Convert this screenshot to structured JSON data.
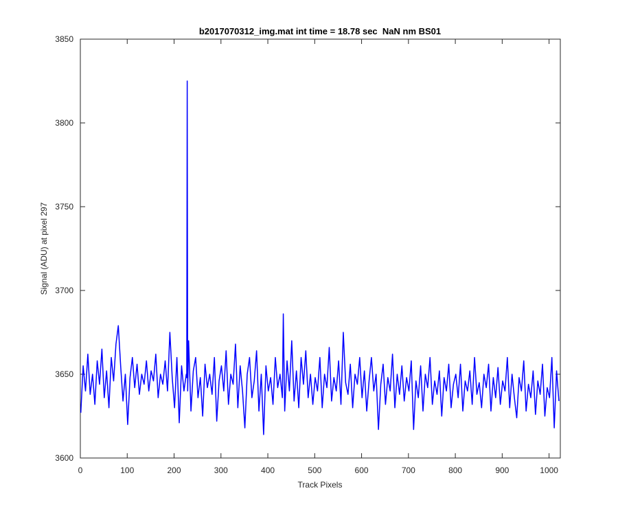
{
  "chart_data": {
    "type": "line",
    "title": "b2017070312_img.mat int time = 18.78 sec  NaN nm BS01",
    "x_label": "Track Pixels",
    "y_label": "Signal (ADU) at pixel 297",
    "xlim": [
      0,
      1024
    ],
    "ylim": [
      3600,
      3850
    ],
    "xticks": [
      0,
      100,
      200,
      300,
      400,
      500,
      600,
      700,
      800,
      900,
      1000
    ],
    "yticks": [
      3600,
      3650,
      3700,
      3750,
      3800,
      3850
    ],
    "grid": false,
    "series": [
      {
        "color": "#0000ff",
        "x": [
          1,
          6,
          11,
          16,
          21,
          26,
          31,
          36,
          41,
          46,
          51,
          56,
          61,
          66,
          71,
          76,
          81,
          86,
          91,
          96,
          101,
          106,
          111,
          116,
          121,
          126,
          131,
          136,
          141,
          146,
          151,
          156,
          161,
          166,
          171,
          176,
          181,
          186,
          191,
          196,
          201,
          206,
          211,
          216,
          221,
          226,
          227,
          228,
          229,
          231,
          236,
          241,
          246,
          251,
          256,
          261,
          266,
          271,
          276,
          281,
          286,
          291,
          296,
          301,
          306,
          311,
          316,
          321,
          326,
          331,
          336,
          341,
          346,
          351,
          356,
          361,
          366,
          371,
          376,
          381,
          386,
          391,
          396,
          401,
          406,
          411,
          416,
          421,
          426,
          431,
          433,
          436,
          441,
          446,
          451,
          456,
          461,
          466,
          471,
          476,
          481,
          486,
          491,
          496,
          501,
          506,
          511,
          516,
          521,
          526,
          531,
          536,
          541,
          546,
          551,
          556,
          561,
          566,
          571,
          576,
          581,
          586,
          591,
          596,
          601,
          606,
          611,
          616,
          621,
          626,
          631,
          636,
          641,
          646,
          651,
          656,
          661,
          666,
          671,
          676,
          681,
          686,
          691,
          696,
          701,
          706,
          711,
          716,
          721,
          726,
          731,
          736,
          741,
          746,
          751,
          756,
          761,
          766,
          771,
          776,
          781,
          786,
          791,
          796,
          801,
          806,
          811,
          816,
          821,
          826,
          831,
          836,
          841,
          846,
          851,
          856,
          861,
          866,
          871,
          876,
          881,
          886,
          891,
          896,
          901,
          906,
          911,
          916,
          921,
          926,
          931,
          936,
          941,
          946,
          951,
          956,
          961,
          966,
          971,
          976,
          981,
          986,
          991,
          996,
          1001,
          1006,
          1011,
          1016,
          1021
        ],
        "values": [
          3627,
          3655,
          3640,
          3662,
          3638,
          3650,
          3632,
          3658,
          3644,
          3665,
          3636,
          3652,
          3630,
          3660,
          3646,
          3668,
          3679,
          3655,
          3634,
          3650,
          3620,
          3648,
          3660,
          3642,
          3656,
          3638,
          3650,
          3644,
          3658,
          3640,
          3652,
          3646,
          3662,
          3636,
          3650,
          3644,
          3658,
          3640,
          3675,
          3648,
          3630,
          3660,
          3621,
          3655,
          3640,
          3650,
          3648,
          3825,
          3640,
          3670,
          3628,
          3652,
          3660,
          3636,
          3648,
          3625,
          3656,
          3642,
          3650,
          3638,
          3660,
          3622,
          3646,
          3655,
          3640,
          3664,
          3632,
          3650,
          3644,
          3668,
          3630,
          3655,
          3640,
          3618,
          3650,
          3660,
          3636,
          3646,
          3664,
          3628,
          3650,
          3614,
          3655,
          3640,
          3648,
          3632,
          3660,
          3642,
          3650,
          3636,
          3686,
          3628,
          3658,
          3640,
          3670,
          3634,
          3652,
          3630,
          3660,
          3644,
          3664,
          3636,
          3650,
          3632,
          3648,
          3640,
          3660,
          3630,
          3650,
          3642,
          3666,
          3634,
          3648,
          3640,
          3658,
          3632,
          3675,
          3645,
          3638,
          3656,
          3630,
          3650,
          3644,
          3660,
          3636,
          3652,
          3628,
          3646,
          3660,
          3640,
          3650,
          3617,
          3644,
          3656,
          3632,
          3648,
          3640,
          3662,
          3630,
          3650,
          3638,
          3655,
          3634,
          3648,
          3640,
          3658,
          3617,
          3646,
          3636,
          3655,
          3628,
          3650,
          3642,
          3660,
          3632,
          3646,
          3638,
          3652,
          3625,
          3648,
          3640,
          3656,
          3630,
          3644,
          3650,
          3636,
          3656,
          3628,
          3646,
          3640,
          3652,
          3632,
          3660,
          3638,
          3645,
          3630,
          3650,
          3642,
          3656,
          3628,
          3648,
          3636,
          3654,
          3632,
          3646,
          3640,
          3660,
          3630,
          3650,
          3636,
          3624,
          3648,
          3640,
          3658,
          3628,
          3644,
          3636,
          3652,
          3626,
          3646,
          3638,
          3656,
          3625,
          3642,
          3636,
          3660,
          3618,
          3652,
          3634
        ]
      }
    ]
  }
}
